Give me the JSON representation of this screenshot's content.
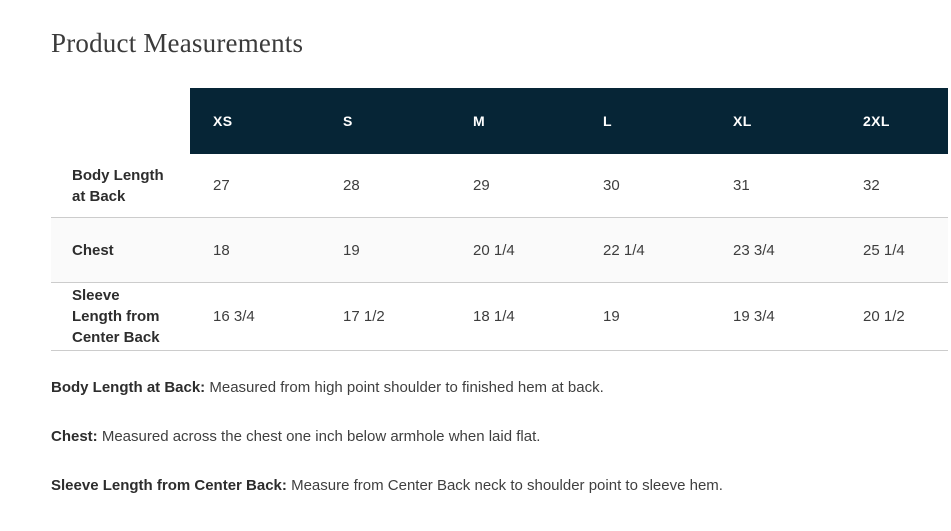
{
  "page": {
    "title": "Product Measurements"
  },
  "table": {
    "columns": [
      "XS",
      "S",
      "M",
      "L",
      "XL",
      "2XL"
    ],
    "rows": [
      {
        "label": "Body Length at Back",
        "values": [
          "27",
          "28",
          "29",
          "30",
          "31",
          "32"
        ]
      },
      {
        "label": "Chest",
        "values": [
          "18",
          "19",
          "20 1/4",
          "22 1/4",
          "23 3/4",
          "25 1/4"
        ]
      },
      {
        "label": "Sleeve Length from Center Back",
        "values": [
          "16 3/4",
          "17 1/2",
          "18 1/4",
          "19",
          "19 3/4",
          "20 1/2"
        ]
      }
    ]
  },
  "definitions": [
    {
      "term": "Body Length at Back:",
      "text": " Measured from high point shoulder to finished hem at back."
    },
    {
      "term": "Chest:",
      "text": " Measured across the chest one inch below armhole when laid flat."
    },
    {
      "term": "Sleeve Length from Center Back:",
      "text": " Measure from Center Back neck to shoulder point to sleeve hem."
    }
  ],
  "colors": {
    "header_bg": "#062536",
    "header_text": "#ffffff",
    "alt_row_bg": "#fafafa",
    "border": "#cccccc",
    "title_text": "#3b3b3b",
    "body_text": "#3d3d3d"
  }
}
